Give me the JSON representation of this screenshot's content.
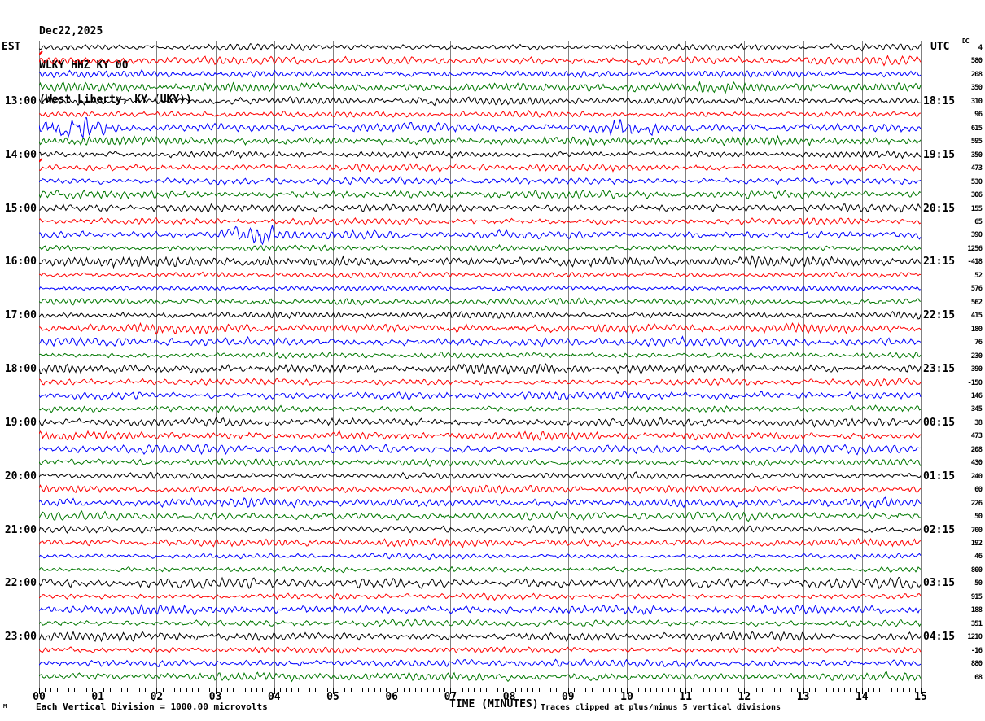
{
  "header": {
    "date": "Dec22,2025",
    "station": "WLKY HHZ KY 00",
    "location": "(West Liberty, KY (UKY))"
  },
  "axes": {
    "left_timezone": "EST",
    "right_timezone": "UTC",
    "dc_header": "DC",
    "x_title": "TIME (MINUTES)",
    "x_ticks": [
      "00",
      "01",
      "02",
      "03",
      "04",
      "05",
      "06",
      "07",
      "08",
      "09",
      "10",
      "11",
      "12",
      "13",
      "14",
      "15"
    ]
  },
  "left_times": [
    "13:00",
    "14:00",
    "15:00",
    "16:00",
    "17:00",
    "18:00",
    "19:00",
    "20:00",
    "21:00",
    "22:00",
    "23:00"
  ],
  "right_times": [
    "18:15",
    "19:15",
    "20:15",
    "21:15",
    "22:15",
    "23:15",
    "00:15",
    "01:15",
    "02:15",
    "03:15",
    "04:15"
  ],
  "dc_values": [
    "4",
    "580",
    "208",
    "350",
    "310",
    "96",
    "615",
    "595",
    "350",
    "473",
    "530",
    "306",
    "155",
    "65",
    "390",
    "1256",
    "-418",
    "52",
    "576",
    "562",
    "415",
    "180",
    "76",
    "230",
    "390",
    "-150",
    "146",
    "345",
    "38",
    "473",
    "208",
    "430",
    "240",
    "60",
    "226",
    "50",
    "700",
    "192",
    "46",
    "800",
    "50",
    "915",
    "188",
    "351",
    "1210",
    "-16",
    "880",
    "68"
  ],
  "footer": {
    "scale_note": "Each Vertical Division = 1000.00 microvolts",
    "clip_note": "Traces clipped at plus/minus 5 vertical divisions",
    "corner_mark": "M"
  },
  "colors": {
    "trace_cycle": [
      "#000000",
      "#ff0000",
      "#0000ff",
      "#007700"
    ],
    "grid": "#808080",
    "axis": "#000000",
    "marker_red": "#ff0000"
  },
  "chart_data": {
    "type": "line",
    "subtype": "helicorder-seismogram",
    "title": "WLKY HHZ KY 00 (West Liberty, KY (UKY)) Dec22,2025",
    "xlabel": "TIME (MINUTES)",
    "x_range_minutes": [
      0,
      15
    ],
    "x_major_tick": 1,
    "x_minor_tick": 0.1,
    "rows": 48,
    "minutes_per_row": 15,
    "first_row_start_left_tz": "12:00",
    "left_tz": "EST",
    "right_tz": "UTC",
    "utc_label_is_row_end_time": true,
    "trace_color_cycle_channels": [
      "black",
      "red",
      "blue",
      "green"
    ],
    "hour_label_rows": [
      4,
      8,
      12,
      16,
      20,
      24,
      28,
      32,
      36,
      40,
      44
    ],
    "dc_offsets_per_row": [
      4,
      580,
      208,
      350,
      310,
      96,
      615,
      595,
      350,
      473,
      530,
      306,
      155,
      65,
      390,
      1256,
      -418,
      52,
      576,
      562,
      415,
      180,
      76,
      230,
      390,
      -150,
      146,
      345,
      38,
      473,
      208,
      430,
      240,
      60,
      226,
      50,
      700,
      192,
      46,
      800,
      50,
      915,
      188,
      351,
      1210,
      -16,
      880,
      68
    ],
    "scale_microvolts_per_division": 1000.0,
    "clip_divisions": 5,
    "noise_character": "continuous microseismic background noise on all 48 traces",
    "events": [
      {
        "row": 6,
        "row_start_est": "13:30",
        "color": "blue",
        "burst_minutes": [
          0.0,
          1.3
        ],
        "peak_gain": 2.6
      },
      {
        "row": 6,
        "row_start_est": "13:30",
        "color": "blue",
        "burst_minutes": [
          9.6,
          10.6
        ],
        "peak_gain": 1.8
      },
      {
        "row": 14,
        "row_start_est": "15:30",
        "color": "blue",
        "burst_minutes": [
          3.2,
          4.1
        ],
        "peak_gain": 2.2
      }
    ],
    "left_red_marker_rows": [
      0,
      8
    ]
  }
}
